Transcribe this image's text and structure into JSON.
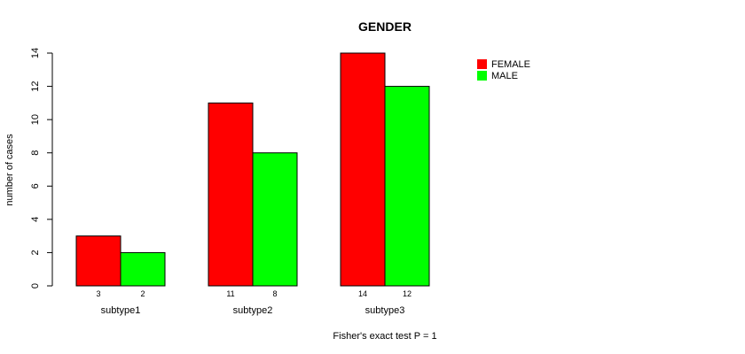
{
  "chart_data": {
    "type": "bar",
    "title": "GENDER",
    "ylabel": "number of cases",
    "xlabel": "",
    "subtitle": "Fisher's exact test P = 1",
    "categories": [
      "subtype1",
      "subtype2",
      "subtype3"
    ],
    "series": [
      {
        "name": "FEMALE",
        "values": [
          3,
          11,
          14
        ],
        "color": "#ff0000"
      },
      {
        "name": "MALE",
        "values": [
          2,
          8,
          12
        ],
        "color": "#00ff00"
      }
    ],
    "ylim": [
      0,
      14
    ],
    "yticks": [
      0,
      2,
      4,
      6,
      8,
      10,
      12,
      14
    ],
    "legend_position": "top-right",
    "grid": false
  }
}
